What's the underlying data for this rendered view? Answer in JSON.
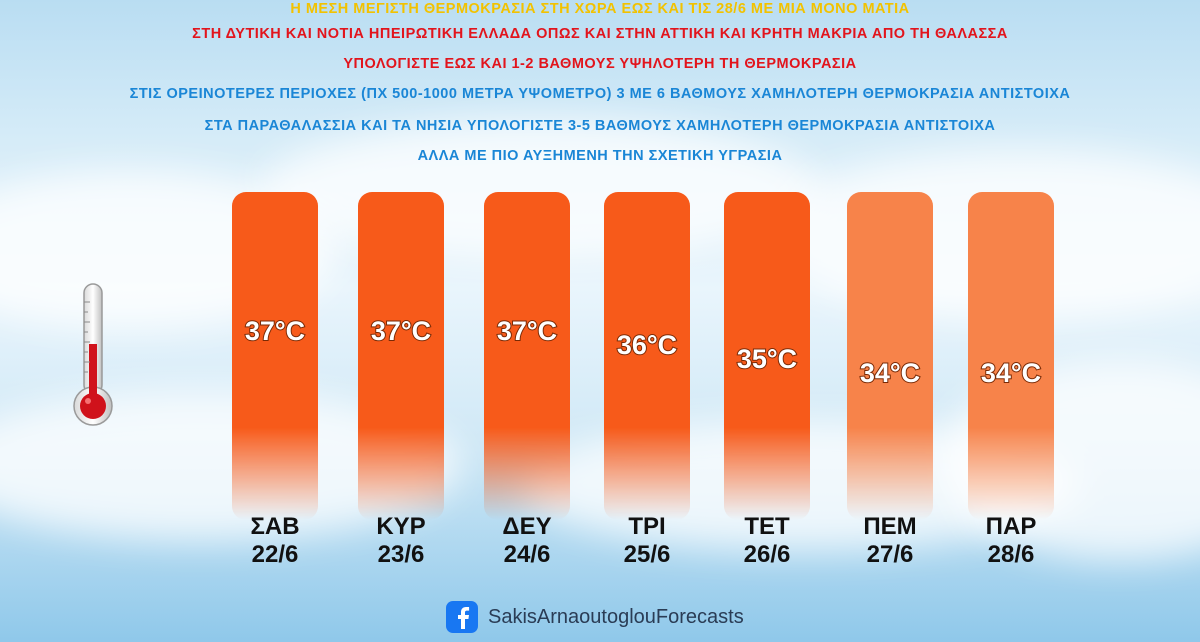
{
  "headlines": [
    {
      "text": "Η ΜΕΣΗ ΜΕΓΙΣΤΗ ΘΕΡΜΟΚΡΑΣΙΑ ΣΤΗ ΧΩΡΑ ΕΩΣ ΚΑΙ ΤΙΣ 28/6 ΜΕ ΜΙΑ ΜΟΝΟ ΜΑΤΙΑ",
      "color": "#f2c200"
    },
    {
      "text": "ΣΤΗ ΔΥΤΙΚΗ ΚΑΙ ΝΟΤΙΑ ΗΠΕΙΡΩΤΙΚΗ ΕΛΛΑΔΑ ΟΠΩΣ ΚΑΙ ΣΤΗΝ ΑΤΤΙΚΗ ΚΑΙ ΚΡΗΤΗ ΜΑΚΡΙΑ ΑΠΟ ΤΗ ΘΑΛΑΣΣΑ",
      "color": "#e2141c"
    },
    {
      "text": "ΥΠΟΛΟΓΙΣΤΕ ΕΩΣ ΚΑΙ 1-2 ΒΑΘΜΟΥΣ ΥΨΗΛΟΤΕΡΗ ΤΗ ΘΕΡΜΟΚΡΑΣΙΑ",
      "color": "#e2141c"
    },
    {
      "text": "ΣΤΙΣ ΟΡΕΙΝΟΤΕΡΕΣ ΠΕΡΙΟΧΕΣ (ΠΧ 500-1000 ΜΕΤΡΑ ΥΨΟΜΕΤΡΟ) 3 ΜΕ 6 ΒΑΘΜΟΥΣ ΧΑΜΗΛΟΤΕΡΗ ΘΕΡΜΟΚΡΑΣΙΑ ΑΝΤΙΣΤΟΙΧΑ",
      "color": "#1a86d6"
    },
    {
      "text": "ΣΤΑ ΠΑΡΑΘΑΛΑΣΣΙΑ ΚΑΙ ΤΑ ΝΗΣΙΑ ΥΠΟΛΟΓΙΣΤΕ 3-5 ΒΑΘΜΟΥΣ ΧΑΜΗΛΟΤΕΡΗ ΘΕΡΜΟΚΡΑΣΙΑ ΑΝΤΙΣΤΟΙΧΑ",
      "color": "#1a86d6"
    },
    {
      "text": "ΑΛΛΑ ΜΕ ΠΙΟ ΑΥΞΗΜΕΝΗ ΤΗΝ ΣΧΕΤΙΚΗ ΥΓΡΑΣΙΑ",
      "color": "#1a86d6"
    }
  ],
  "chart_data": {
    "type": "bar",
    "unit": "°C",
    "categories": [
      {
        "day": "ΣΑΒ",
        "date": "22/6"
      },
      {
        "day": "ΚΥΡ",
        "date": "23/6"
      },
      {
        "day": "ΔΕΥ",
        "date": "24/6"
      },
      {
        "day": "ΤΡΙ",
        "date": "25/6"
      },
      {
        "day": "ΤΕΤ",
        "date": "26/6"
      },
      {
        "day": "ΠΕΜ",
        "date": "27/6"
      },
      {
        "day": "ΠΑΡ",
        "date": "28/6"
      }
    ],
    "values": [
      37,
      37,
      37,
      36,
      35,
      34,
      34
    ],
    "data_labels": [
      "37°C",
      "37°C",
      "37°C",
      "36°C",
      "35°C",
      "34°C",
      "34°C"
    ],
    "bar_colors": [
      "#f75a1a",
      "#f75a1a",
      "#f75a1a",
      "#f75a1a",
      "#f75a1a",
      "#f7834a",
      "#f7834a"
    ],
    "grid": false,
    "legend": "none"
  },
  "footer": {
    "icon": "facebook-icon",
    "text": "SakisArnaoutoglouForecasts"
  },
  "thermometer": {
    "icon": "thermometer-icon",
    "fill_color": "#d0121b"
  }
}
